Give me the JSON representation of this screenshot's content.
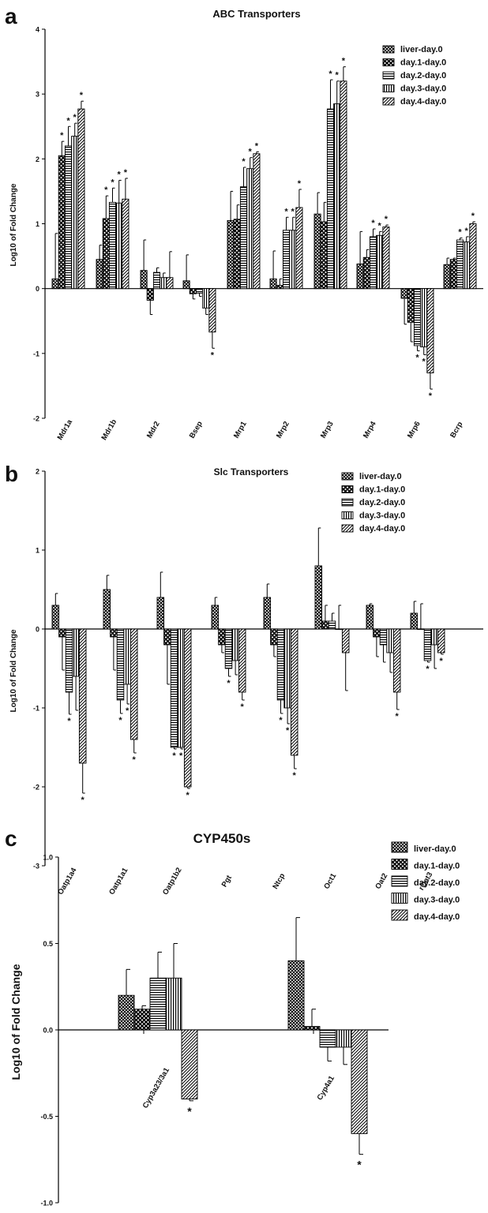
{
  "chart_data": [
    {
      "panel": "a",
      "type": "bar",
      "title": "ABC Transporters",
      "ylabel": "Log10 of Fold Change",
      "ylim": [
        -2,
        4
      ],
      "yticks": [
        -2,
        -1,
        0,
        1,
        2,
        3,
        4
      ],
      "grid": false,
      "legend": "top-right",
      "categories": [
        "Mdr1a",
        "Mdr1b",
        "Mdr2",
        "Bsep",
        "Mrp1",
        "Mrp2",
        "Mrp3",
        "Mrp4",
        "Mrp6",
        "Bcrp"
      ],
      "series": [
        {
          "name": "liver-day.0",
          "pattern": "crosshatch",
          "values": [
            0.15,
            0.45,
            0.28,
            0.12,
            1.05,
            0.15,
            1.15,
            0.38,
            -0.15,
            0.37
          ],
          "errors": [
            0.7,
            0.22,
            0.47,
            0.4,
            0.45,
            0.43,
            0.33,
            0.5,
            0.4,
            0.1
          ],
          "sig": [
            false,
            false,
            false,
            false,
            false,
            false,
            false,
            false,
            false,
            false
          ]
        },
        {
          "name": "day.1-day.0",
          "pattern": "checker",
          "values": [
            2.05,
            1.08,
            -0.18,
            -0.08,
            1.07,
            0.05,
            1.03,
            0.48,
            -0.52,
            0.45
          ],
          "errors": [
            0.22,
            0.35,
            0.22,
            0.08,
            0.22,
            0.1,
            0.3,
            0.12,
            0.3,
            0.02
          ],
          "sig": [
            true,
            true,
            false,
            false,
            false,
            false,
            false,
            false,
            false,
            false
          ]
        },
        {
          "name": "day.2-day.0",
          "pattern": "hlines",
          "values": [
            2.2,
            1.33,
            0.25,
            -0.07,
            1.57,
            0.9,
            2.77,
            0.8,
            -0.88,
            0.75
          ],
          "errors": [
            0.3,
            0.22,
            0.07,
            0.05,
            0.3,
            0.2,
            0.45,
            0.12,
            0.08,
            0.03
          ],
          "sig": [
            true,
            true,
            false,
            false,
            true,
            true,
            true,
            true,
            true,
            true
          ]
        },
        {
          "name": "day.3-day.0",
          "pattern": "vlines",
          "values": [
            2.35,
            1.32,
            0.17,
            -0.3,
            1.85,
            0.9,
            2.85,
            0.82,
            -0.9,
            0.72
          ],
          "errors": [
            0.2,
            0.35,
            0.07,
            0.1,
            0.17,
            0.2,
            0.35,
            0.06,
            0.12,
            0.08
          ],
          "sig": [
            true,
            true,
            false,
            false,
            true,
            true,
            true,
            true,
            true,
            true
          ]
        },
        {
          "name": "day.4-day.0",
          "pattern": "diagonal",
          "values": [
            2.77,
            1.38,
            0.17,
            -0.67,
            2.08,
            1.25,
            3.2,
            0.95,
            -1.3,
            1.0
          ],
          "errors": [
            0.12,
            0.32,
            0.4,
            0.25,
            0.03,
            0.28,
            0.22,
            0.03,
            0.25,
            0.03
          ],
          "sig": [
            true,
            true,
            false,
            true,
            true,
            true,
            true,
            true,
            true,
            true
          ]
        }
      ]
    },
    {
      "panel": "b",
      "type": "bar",
      "title": "Slc Transporters",
      "ylabel": "Log10 of Fold Change",
      "ylim": [
        -3,
        2
      ],
      "yticks": [
        -3,
        -2,
        -1,
        0,
        1,
        2
      ],
      "grid": false,
      "legend": "top-right",
      "categories": [
        "Oatp1a4",
        "Oatp1a1",
        "Oatp1b2",
        "Pgt",
        "Ntcp",
        "Oct1",
        "Oat2",
        "rOat3"
      ],
      "series": [
        {
          "name": "liver-day.0",
          "pattern": "crosshatch",
          "values": [
            0.3,
            0.5,
            0.4,
            0.3,
            0.4,
            0.8,
            0.3,
            0.2
          ],
          "errors": [
            0.15,
            0.18,
            0.32,
            0.1,
            0.17,
            0.48,
            0.02,
            0.15
          ],
          "sig": [
            false,
            false,
            false,
            false,
            false,
            false,
            false,
            false
          ]
        },
        {
          "name": "day.1-day.0",
          "pattern": "checker",
          "values": [
            -0.1,
            -0.1,
            -0.2,
            -0.2,
            -0.2,
            0.1,
            -0.1,
            0.0
          ],
          "errors": [
            0.42,
            0.42,
            0.5,
            0.1,
            0.15,
            0.2,
            0.25,
            0.32
          ],
          "sig": [
            false,
            false,
            false,
            false,
            false,
            false,
            false,
            false
          ]
        },
        {
          "name": "day.2-day.0",
          "pattern": "hlines",
          "values": [
            -0.8,
            -0.9,
            -1.5,
            -0.5,
            -0.9,
            0.1,
            -0.2,
            -0.4
          ],
          "errors": [
            0.28,
            0.17,
            0.02,
            0.1,
            0.17,
            0.1,
            0.22,
            0.02
          ],
          "sig": [
            true,
            true,
            true,
            true,
            true,
            false,
            false,
            true
          ]
        },
        {
          "name": "day.3-day.0",
          "pattern": "vlines",
          "values": [
            -0.6,
            -0.7,
            -1.5,
            -0.4,
            -1.0,
            0.0,
            -0.3,
            -0.2
          ],
          "errors": [
            0.43,
            0.25,
            0.02,
            0.18,
            0.2,
            0.3,
            0.25,
            0.3
          ],
          "sig": [
            false,
            true,
            true,
            false,
            true,
            false,
            false,
            false
          ]
        },
        {
          "name": "day.4-day.0",
          "pattern": "diagonal",
          "values": [
            -1.7,
            -1.4,
            -2.0,
            -0.8,
            -1.6,
            -0.3,
            -0.8,
            -0.3
          ],
          "errors": [
            0.38,
            0.17,
            0.02,
            0.1,
            0.17,
            0.48,
            0.22,
            0.02
          ],
          "sig": [
            true,
            true,
            true,
            true,
            true,
            false,
            true,
            true
          ]
        }
      ]
    },
    {
      "panel": "c",
      "type": "bar",
      "title": "CYP450s",
      "ylabel": "Log10 of Fold Change",
      "ylim": [
        -1.0,
        1.0
      ],
      "yticks": [
        -1.0,
        -0.5,
        0.0,
        0.5,
        1.0
      ],
      "grid": false,
      "legend": "top-right",
      "categories": [
        "Cyp3a23/3a1",
        "Cyp4a1"
      ],
      "series": [
        {
          "name": "liver-day.0",
          "pattern": "crosshatch",
          "values": [
            0.2,
            0.4
          ],
          "errors": [
            0.15,
            0.25
          ],
          "sig": [
            false,
            false
          ]
        },
        {
          "name": "day.1-day.0",
          "pattern": "checker",
          "values": [
            0.12,
            0.02
          ],
          "errors": [
            0.02,
            0.1
          ],
          "sig": [
            false,
            false
          ]
        },
        {
          "name": "day.2-day.0",
          "pattern": "hlines",
          "values": [
            0.3,
            -0.1
          ],
          "errors": [
            0.15,
            0.08
          ],
          "sig": [
            false,
            false
          ]
        },
        {
          "name": "day.3-day.0",
          "pattern": "vlines",
          "values": [
            0.3,
            -0.1
          ],
          "errors": [
            0.2,
            0.1
          ],
          "sig": [
            false,
            false
          ]
        },
        {
          "name": "day.4-day.0",
          "pattern": "diagonal",
          "values": [
            -0.4,
            -0.6
          ],
          "errors": [
            0.01,
            0.12
          ],
          "sig": [
            true,
            true
          ]
        }
      ]
    }
  ]
}
